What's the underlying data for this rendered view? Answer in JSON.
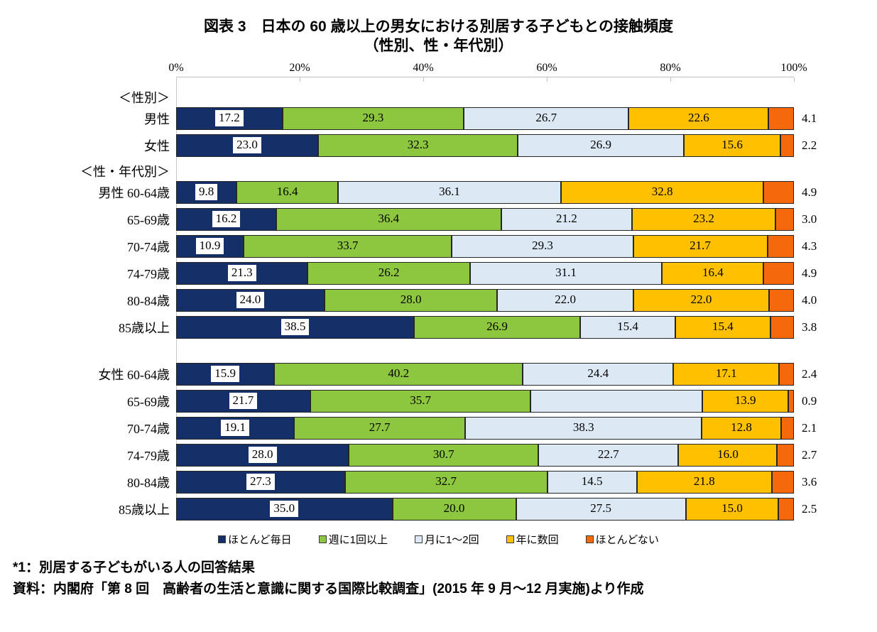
{
  "title": {
    "line1": "図表 3　日本の 60 歳以上の男女における別居する子どもとの接触頻度",
    "line2": "（性別、性・年代別）"
  },
  "chart_data": {
    "type": "bar",
    "stacked": true,
    "orientation": "horizontal",
    "unit": "%",
    "xlim": [
      0,
      100
    ],
    "x_ticks": [
      0,
      20,
      40,
      60,
      80,
      100
    ],
    "x_tick_labels": [
      "0%",
      "20%",
      "40%",
      "60%",
      "80%",
      "100%"
    ],
    "grid": false,
    "legend_position": "bottom",
    "series": [
      {
        "name": "ほとんど毎日",
        "color": "#153069"
      },
      {
        "name": "週に1回以上",
        "color": "#8DC63F"
      },
      {
        "name": "月に1～2回",
        "color": "#DCE9F5"
      },
      {
        "name": "年に数回",
        "color": "#FFC000"
      },
      {
        "name": "ほとんどない",
        "color": "#F5690C"
      }
    ],
    "label_style": {
      "first_segment": "white-box-inside",
      "middle_segments": "inside-plain",
      "last_segment": "outside-right"
    },
    "sections": [
      {
        "header": "＜性別＞",
        "rows": [
          {
            "label": "男性",
            "values": [
              17.2,
              29.3,
              26.7,
              22.6,
              4.1
            ]
          },
          {
            "label": "女性",
            "values": [
              23.0,
              32.3,
              26.9,
              15.6,
              2.2
            ]
          }
        ]
      },
      {
        "header": "＜性・年代別＞",
        "rows": [
          {
            "label": "男性 60-64歳",
            "values": [
              9.8,
              16.4,
              36.1,
              32.8,
              4.9
            ]
          },
          {
            "label": "65-69歳",
            "values": [
              16.2,
              36.4,
              21.2,
              23.2,
              3.0
            ]
          },
          {
            "label": "70-74歳",
            "values": [
              10.9,
              33.7,
              29.3,
              21.7,
              4.3
            ]
          },
          {
            "label": "74-79歳",
            "values": [
              21.3,
              26.2,
              31.1,
              16.4,
              4.9
            ]
          },
          {
            "label": "80-84歳",
            "values": [
              24.0,
              28.0,
              22.0,
              22.0,
              4.0
            ]
          },
          {
            "label": "85歳以上",
            "values": [
              38.5,
              26.9,
              15.4,
              15.4,
              3.8
            ]
          }
        ]
      },
      {
        "header": null,
        "gap_before": true,
        "rows": [
          {
            "label": "女性 60-64歳",
            "values": [
              15.9,
              40.2,
              24.4,
              17.1,
              2.4
            ]
          },
          {
            "label": "65-69歳",
            "values": [
              21.7,
              35.7,
              27.8,
              13.9,
              0.9
            ],
            "hidden_labels": [
              2
            ]
          },
          {
            "label": "70-74歳",
            "values": [
              19.1,
              27.7,
              38.3,
              12.8,
              2.1
            ]
          },
          {
            "label": "74-79歳",
            "values": [
              28.0,
              30.7,
              22.7,
              16.0,
              2.7
            ]
          },
          {
            "label": "80-84歳",
            "values": [
              27.3,
              32.7,
              14.5,
              21.8,
              3.6
            ]
          },
          {
            "label": "85歳以上",
            "values": [
              35.0,
              20.0,
              27.5,
              15.0,
              2.5
            ]
          }
        ]
      }
    ]
  },
  "colors": {
    "axis_line": "#BFBFBF",
    "segment_border": "#262626",
    "label_box_bg": "#FFFFFF",
    "text": "#000000"
  },
  "footnotes": {
    "note1": "*1：別居する子どもがいる人の回答結果",
    "source": "資料：内閣府「第 8 回　高齢者の生活と意識に関する国際比較調査」(2015 年 9 月～12 月実施)より作成"
  }
}
